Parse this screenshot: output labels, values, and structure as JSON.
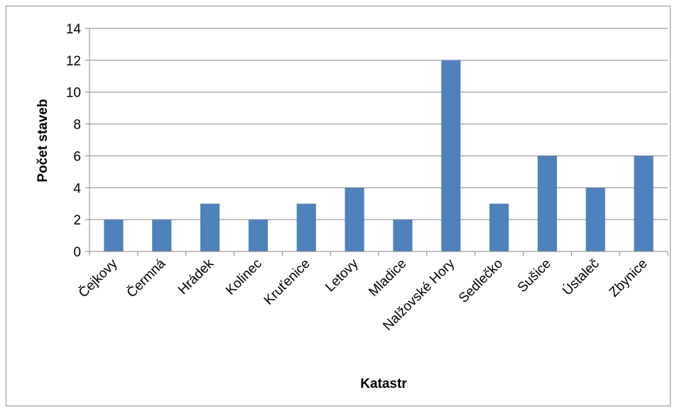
{
  "chart_data": {
    "type": "bar",
    "title": "",
    "xlabel": "Katastr",
    "ylabel": "Počet staveb",
    "categories": [
      "Čejkovy",
      "Čermná",
      "Hrádek",
      "Kolinec",
      "Kruťenice",
      "Letovy",
      "Mladice",
      "Nalžovské Hory",
      "Sedlečko",
      "Sušice",
      "Ústaleč",
      "Zbynice"
    ],
    "values": [
      2,
      2,
      3,
      2,
      3,
      4,
      2,
      12,
      3,
      6,
      4,
      6
    ],
    "ylim": [
      0,
      14
    ],
    "yticks": [
      0,
      2,
      4,
      6,
      8,
      10,
      12,
      14
    ],
    "grid": true,
    "legend": "none",
    "colors": {
      "bar": "#4f81bd",
      "grid": "#868686",
      "axis": "#868686"
    }
  }
}
